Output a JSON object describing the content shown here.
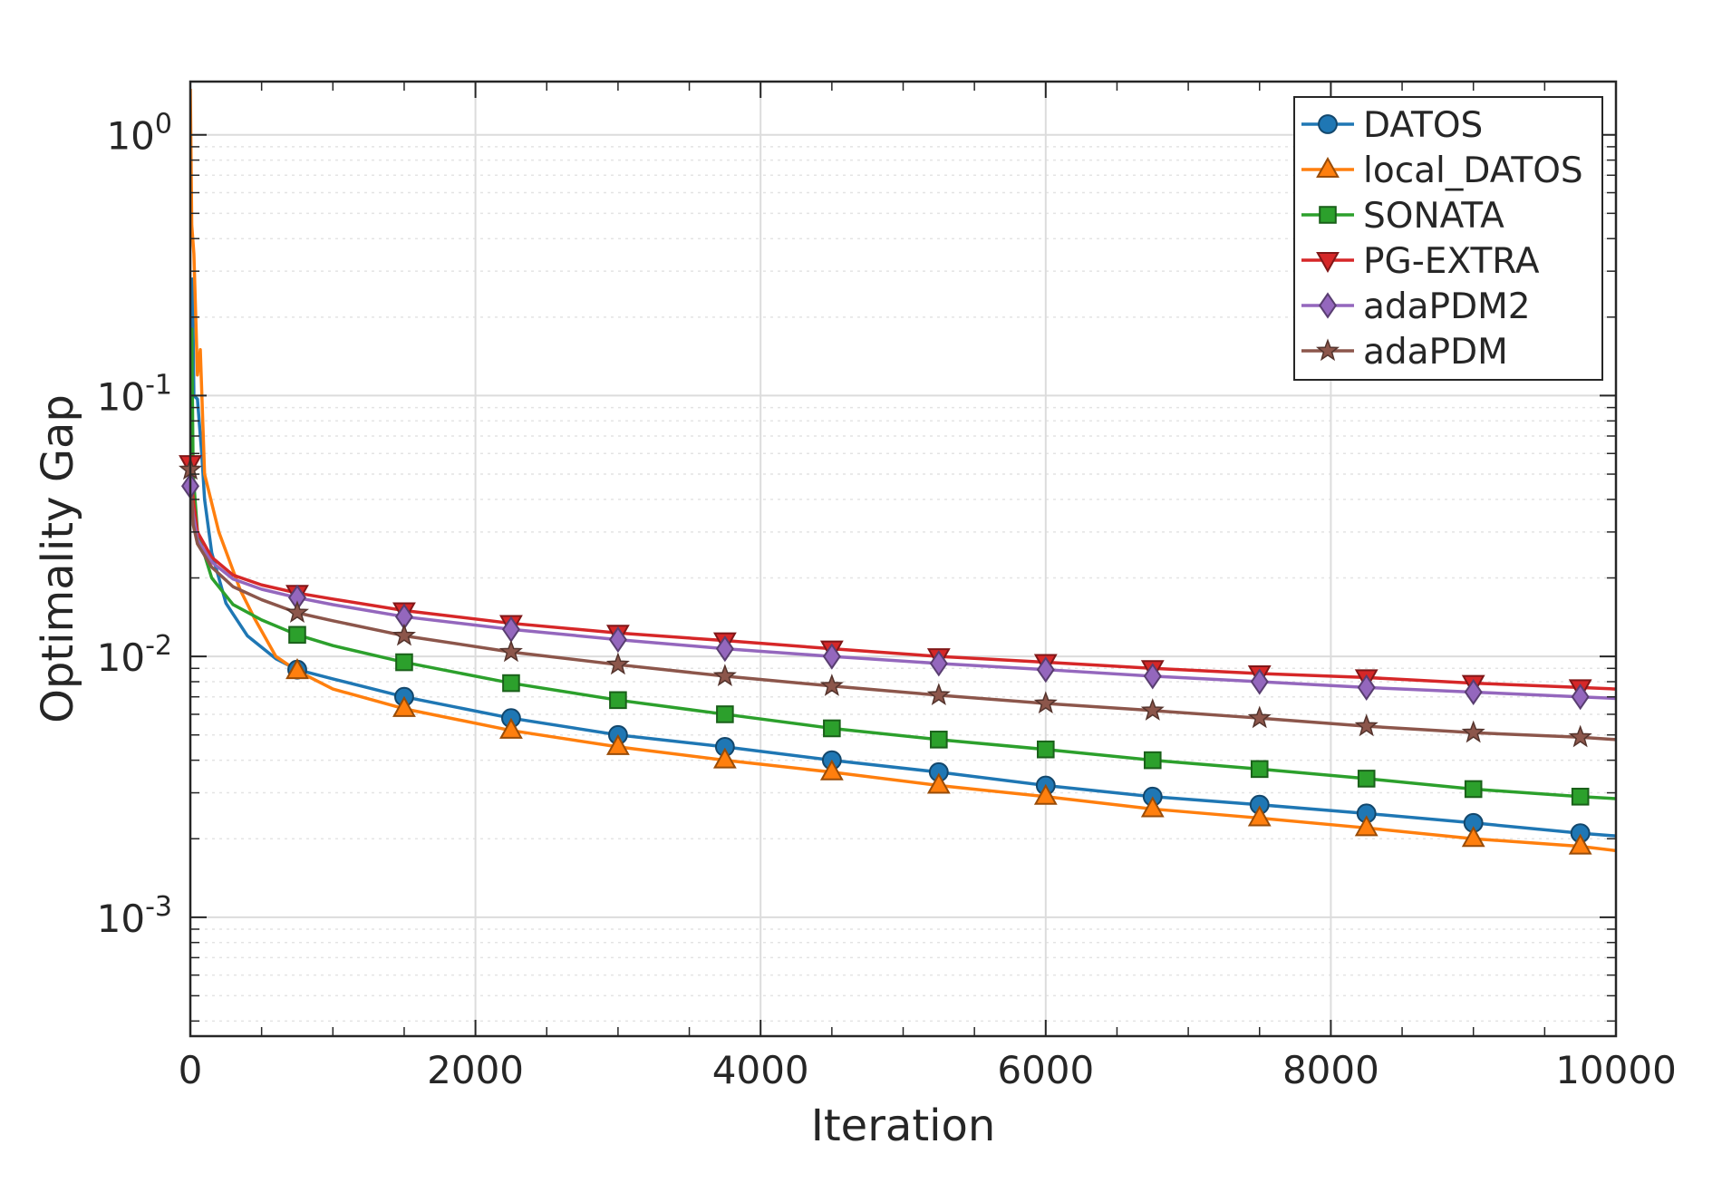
{
  "chart_data": {
    "type": "line",
    "title": "",
    "xlabel": "Iteration",
    "ylabel": "Optimality Gap",
    "xlim": [
      0,
      10000
    ],
    "ylim": [
      0.00035,
      1.6
    ],
    "yscale": "log",
    "grid": true,
    "legend_position": "top-right",
    "x_ticks": [
      0,
      2000,
      4000,
      6000,
      8000,
      10000
    ],
    "x_tick_labels": [
      "0",
      "2000",
      "4000",
      "6000",
      "8000",
      "10000"
    ],
    "y_ticks": [
      0.001,
      0.01,
      0.1,
      1
    ],
    "y_tick_labels": [
      {
        "base": "10",
        "exp": "-3"
      },
      {
        "base": "10",
        "exp": "-2"
      },
      {
        "base": "10",
        "exp": "-1"
      },
      {
        "base": "10",
        "exp": "0"
      }
    ],
    "series": [
      {
        "name": "DATOS",
        "color": "#1f77b4",
        "marker": "circle",
        "points": [
          [
            0,
            0.09
          ],
          [
            15,
            0.28
          ],
          [
            25,
            0.1
          ],
          [
            50,
            0.097
          ],
          [
            80,
            0.06
          ],
          [
            100,
            0.04
          ],
          [
            150,
            0.025
          ],
          [
            250,
            0.016
          ],
          [
            400,
            0.012
          ],
          [
            600,
            0.0098
          ],
          [
            750,
            0.0089
          ],
          [
            1000,
            0.0082
          ],
          [
            1500,
            0.007
          ],
          [
            2250,
            0.0058
          ],
          [
            3000,
            0.005
          ],
          [
            3750,
            0.0045
          ],
          [
            4500,
            0.004
          ],
          [
            5250,
            0.0036
          ],
          [
            6000,
            0.0032
          ],
          [
            6750,
            0.0029
          ],
          [
            7500,
            0.0027
          ],
          [
            8250,
            0.0025
          ],
          [
            9000,
            0.0023
          ],
          [
            9750,
            0.0021
          ],
          [
            10000,
            0.00205
          ]
        ],
        "markers_x": [
          750,
          1500,
          2250,
          3000,
          3750,
          4500,
          5250,
          6000,
          6750,
          7500,
          8250,
          9000,
          9750
        ]
      },
      {
        "name": "local_DATOS",
        "color": "#ff7f0e",
        "marker": "triangle-up",
        "points": [
          [
            0,
            1.5
          ],
          [
            10,
            0.45
          ],
          [
            25,
            0.35
          ],
          [
            50,
            0.12
          ],
          [
            70,
            0.15
          ],
          [
            100,
            0.05
          ],
          [
            200,
            0.03
          ],
          [
            350,
            0.018
          ],
          [
            450,
            0.014
          ],
          [
            600,
            0.01
          ],
          [
            750,
            0.0088
          ],
          [
            1000,
            0.0075
          ],
          [
            1500,
            0.0063
          ],
          [
            2250,
            0.0052
          ],
          [
            3000,
            0.0045
          ],
          [
            3750,
            0.004
          ],
          [
            4500,
            0.0036
          ],
          [
            5250,
            0.0032
          ],
          [
            6000,
            0.0029
          ],
          [
            6750,
            0.0026
          ],
          [
            7500,
            0.0024
          ],
          [
            8250,
            0.0022
          ],
          [
            9000,
            0.002
          ],
          [
            9750,
            0.00187
          ],
          [
            10000,
            0.0018
          ]
        ],
        "markers_x": [
          750,
          1500,
          2250,
          3000,
          3750,
          4500,
          5250,
          6000,
          6750,
          7500,
          8250,
          9000,
          9750
        ]
      },
      {
        "name": "SONATA",
        "color": "#2ca02c",
        "marker": "square",
        "points": [
          [
            0,
            0.055
          ],
          [
            10,
            0.18
          ],
          [
            20,
            0.05
          ],
          [
            50,
            0.03
          ],
          [
            150,
            0.02
          ],
          [
            300,
            0.0158
          ],
          [
            500,
            0.0138
          ],
          [
            750,
            0.0121
          ],
          [
            1000,
            0.011
          ],
          [
            1500,
            0.0095
          ],
          [
            2250,
            0.0079
          ],
          [
            3000,
            0.0068
          ],
          [
            3750,
            0.006
          ],
          [
            4500,
            0.0053
          ],
          [
            5250,
            0.0048
          ],
          [
            6000,
            0.0044
          ],
          [
            6750,
            0.004
          ],
          [
            7500,
            0.0037
          ],
          [
            8250,
            0.0034
          ],
          [
            9000,
            0.0031
          ],
          [
            9750,
            0.0029
          ],
          [
            10000,
            0.00285
          ]
        ],
        "markers_x": [
          750,
          1500,
          2250,
          3000,
          3750,
          4500,
          5250,
          6000,
          6750,
          7500,
          8250,
          9000,
          9750
        ]
      },
      {
        "name": "PG-EXTRA",
        "color": "#d62728",
        "marker": "triangle-down",
        "points": [
          [
            0,
            0.055
          ],
          [
            20,
            0.04
          ],
          [
            50,
            0.03
          ],
          [
            150,
            0.024
          ],
          [
            300,
            0.0205
          ],
          [
            500,
            0.0188
          ],
          [
            750,
            0.0175
          ],
          [
            1000,
            0.0166
          ],
          [
            1500,
            0.015
          ],
          [
            2250,
            0.0134
          ],
          [
            3000,
            0.0123
          ],
          [
            3750,
            0.0115
          ],
          [
            4500,
            0.0107
          ],
          [
            5250,
            0.01
          ],
          [
            6000,
            0.0095
          ],
          [
            6750,
            0.009
          ],
          [
            7500,
            0.0086
          ],
          [
            8250,
            0.0083
          ],
          [
            9000,
            0.0079
          ],
          [
            9750,
            0.0076
          ],
          [
            10000,
            0.0075
          ]
        ],
        "markers_x": [
          0,
          750,
          1500,
          2250,
          3000,
          3750,
          4500,
          5250,
          6000,
          6750,
          7500,
          8250,
          9000,
          9750
        ]
      },
      {
        "name": "adaPDM2",
        "color": "#9467bd",
        "marker": "diamond",
        "points": [
          [
            0,
            0.045
          ],
          [
            20,
            0.035
          ],
          [
            50,
            0.028
          ],
          [
            150,
            0.023
          ],
          [
            300,
            0.0198
          ],
          [
            500,
            0.0181
          ],
          [
            750,
            0.0168
          ],
          [
            1000,
            0.0158
          ],
          [
            1500,
            0.0142
          ],
          [
            2250,
            0.0127
          ],
          [
            3000,
            0.0116
          ],
          [
            3750,
            0.0107
          ],
          [
            4500,
            0.01
          ],
          [
            5250,
            0.0094
          ],
          [
            6000,
            0.0089
          ],
          [
            6750,
            0.0084
          ],
          [
            7500,
            0.008
          ],
          [
            8250,
            0.0076
          ],
          [
            9000,
            0.0073
          ],
          [
            9750,
            0.007
          ],
          [
            10000,
            0.0069
          ]
        ],
        "markers_x": [
          0,
          750,
          1500,
          2250,
          3000,
          3750,
          4500,
          5250,
          6000,
          6750,
          7500,
          8250,
          9000,
          9750
        ]
      },
      {
        "name": "adaPDM",
        "color": "#8c564b",
        "marker": "star",
        "points": [
          [
            0,
            0.052
          ],
          [
            20,
            0.032
          ],
          [
            50,
            0.027
          ],
          [
            150,
            0.022
          ],
          [
            300,
            0.0185
          ],
          [
            500,
            0.0165
          ],
          [
            750,
            0.0147
          ],
          [
            1000,
            0.0137
          ],
          [
            1500,
            0.012
          ],
          [
            2250,
            0.0104
          ],
          [
            3000,
            0.0093
          ],
          [
            3750,
            0.0084
          ],
          [
            4500,
            0.0077
          ],
          [
            5250,
            0.0071
          ],
          [
            6000,
            0.0066
          ],
          [
            6750,
            0.0062
          ],
          [
            7500,
            0.0058
          ],
          [
            8250,
            0.0054
          ],
          [
            9000,
            0.0051
          ],
          [
            9750,
            0.0049
          ],
          [
            10000,
            0.0048
          ]
        ],
        "markers_x": [
          0,
          750,
          1500,
          2250,
          3000,
          3750,
          4500,
          5250,
          6000,
          6750,
          7500,
          8250,
          9000,
          9750
        ]
      }
    ]
  }
}
